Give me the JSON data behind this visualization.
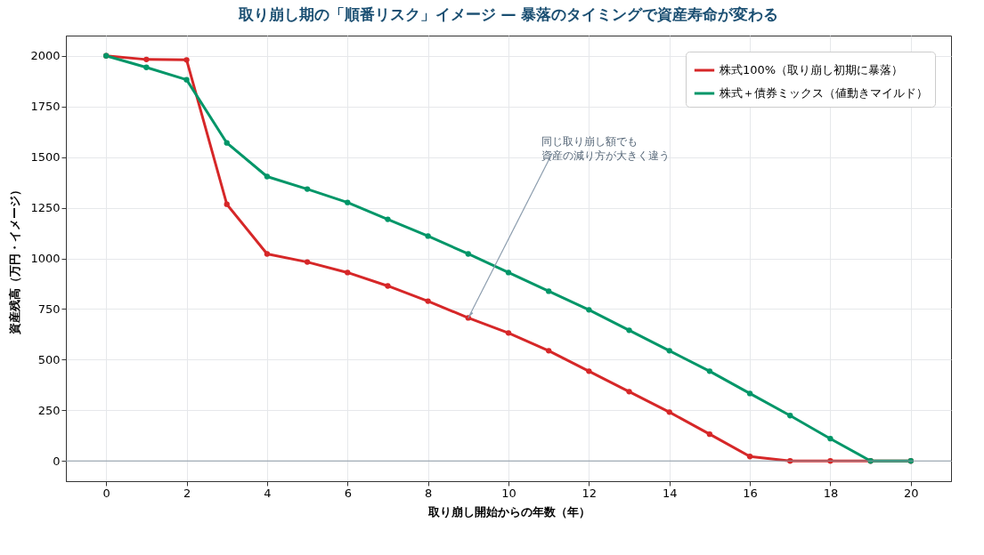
{
  "chart_data": {
    "type": "line",
    "title": "取り崩し期の「順番リスク」イメージ — 暴落のタイミングで資産寿命が変わる",
    "xlabel": "取り崩し開始からの年数（年）",
    "ylabel": "資産残高（万円・イメージ）",
    "x": [
      0,
      1,
      2,
      3,
      4,
      5,
      6,
      7,
      8,
      9,
      10,
      11,
      12,
      13,
      14,
      15,
      16,
      17,
      18,
      19,
      20
    ],
    "series": [
      {
        "name": "株式100%（取り崩し初期に暴落）",
        "color": "#d62728",
        "values": [
          2000,
          1982,
          1980,
          1267,
          1022,
          982,
          930,
          864,
          789,
          706,
          632,
          544,
          443,
          342,
          241,
          132,
          22,
          0,
          0,
          0,
          0
        ]
      },
      {
        "name": "株式＋債券ミックス（値動きマイルド）",
        "color": "#009668",
        "values": [
          2000,
          1943,
          1882,
          1570,
          1404,
          1342,
          1276,
          1193,
          1110,
          1022,
          930,
          838,
          746,
          645,
          544,
          443,
          333,
          224,
          110,
          0,
          0
        ]
      }
    ],
    "xlim": [
      -1,
      21
    ],
    "xticks": [
      0,
      2,
      4,
      6,
      8,
      10,
      12,
      14,
      16,
      18,
      20
    ],
    "ylim": [
      -100,
      2100
    ],
    "yticks": [
      0,
      250,
      500,
      750,
      1000,
      1250,
      1500,
      1750,
      2000
    ],
    "grid": true,
    "legend": "top right",
    "marker": "circle",
    "line_style": "solid",
    "ref_lines": [
      {
        "axis": "y",
        "value": 0,
        "color": "#8c99a6"
      }
    ],
    "annotations": [
      {
        "text": "同じ取り崩し額でも資産の減り方が大きく違う",
        "x": 9,
        "y": 706
      }
    ]
  }
}
